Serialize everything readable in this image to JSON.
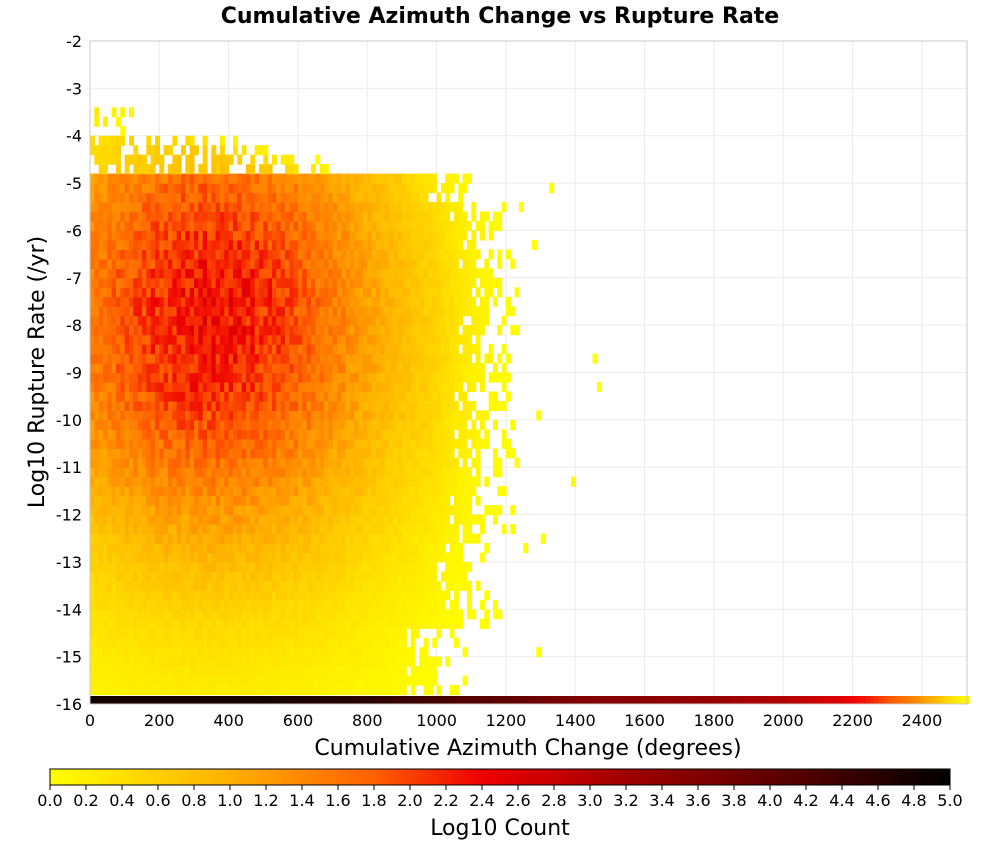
{
  "chart_data": {
    "type": "heatmap",
    "title": "Cumulative Azimuth Change vs Rupture Rate",
    "xlabel": "Cumulative Azimuth Change (degrees)",
    "ylabel": "Log10 Rupture Rate (/yr)",
    "xlim": [
      0,
      2530
    ],
    "ylim": [
      -16,
      -2
    ],
    "x_ticks": [
      "0",
      "200",
      "400",
      "600",
      "800",
      "1000",
      "1200",
      "1400",
      "1600",
      "1800",
      "2000",
      "2200",
      "2400"
    ],
    "y_ticks": [
      "-2",
      "-3",
      "-4",
      "-5",
      "-6",
      "-7",
      "-8",
      "-9",
      "-10",
      "-11",
      "-12",
      "-13",
      "-14",
      "-15",
      "-16"
    ],
    "grid": true,
    "bin_size_x": 12.5,
    "bin_size_y": 0.2,
    "colorscale": {
      "label": "Log10 Count",
      "range": [
        0,
        5
      ],
      "ticks": [
        "0.0",
        "0.2",
        "0.4",
        "0.6",
        "0.8",
        "1.0",
        "1.2",
        "1.4",
        "1.6",
        "1.8",
        "2.0",
        "2.2",
        "2.4",
        "2.6",
        "2.8",
        "3.0",
        "3.2",
        "3.4",
        "3.6",
        "3.8",
        "4.0",
        "4.2",
        "4.4",
        "4.6",
        "4.8",
        "5.0"
      ],
      "stops": [
        {
          "value": 0.0,
          "color": "#ffff00"
        },
        {
          "value": 1.0,
          "color": "#ffb000"
        },
        {
          "value": 1.8,
          "color": "#ff6000"
        },
        {
          "value": 2.4,
          "color": "#ee0000"
        },
        {
          "value": 3.2,
          "color": "#a00000"
        },
        {
          "value": 4.2,
          "color": "#500000"
        },
        {
          "value": 5.0,
          "color": "#000000"
        }
      ]
    },
    "density_summary": {
      "peak_x": 350,
      "peak_y": -7.8,
      "peak_log10_count": 2.3,
      "core_x_range": [
        0,
        1300
      ],
      "core_y_range": [
        -16,
        -3.6
      ]
    },
    "bottom_row": {
      "y": -16,
      "points": [
        [
          0,
          4.8
        ],
        [
          400,
          4.8
        ],
        [
          800,
          4.6
        ],
        [
          1200,
          4.0
        ],
        [
          1400,
          3.6
        ],
        [
          1600,
          3.5
        ],
        [
          1800,
          3.3
        ],
        [
          2000,
          3.0
        ],
        [
          2150,
          2.6
        ],
        [
          2250,
          2.2
        ],
        [
          2350,
          1.6
        ],
        [
          2430,
          1.0
        ],
        [
          2480,
          0.4
        ],
        [
          2520,
          0.1
        ]
      ]
    },
    "outliers": [
      [
        1450,
        -8.8,
        0.0
      ],
      [
        1470,
        -9.4,
        0.0
      ],
      [
        1390,
        -11.4,
        0.0
      ],
      [
        1295,
        -10.0,
        0.0
      ],
      [
        1260,
        -12.8,
        0.0
      ],
      [
        1305,
        -12.6,
        0.0
      ],
      [
        1295,
        -15.0,
        0.0
      ],
      [
        1240,
        -5.6,
        0.0
      ],
      [
        1285,
        -6.4,
        0.0
      ],
      [
        1330,
        -5.1,
        0.0
      ]
    ]
  }
}
